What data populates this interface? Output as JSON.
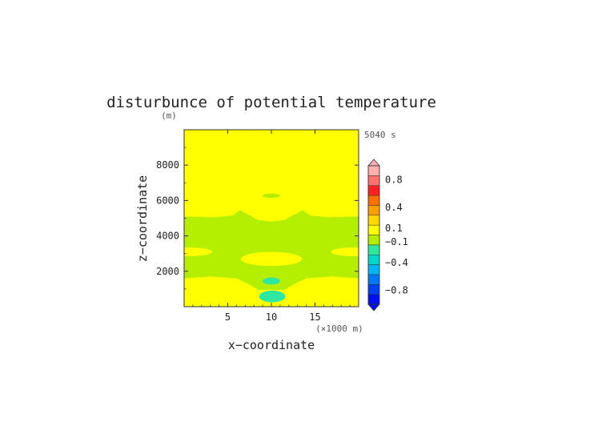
{
  "chart_data": {
    "type": "heatmap",
    "title": "disturbunce of potential temperature",
    "time_label": "5040 s",
    "xlabel": "x−coordinate",
    "ylabel": "z−coordinate",
    "x_unit": "(×1000 m)",
    "y_unit": "(m)",
    "xlim": [
      0,
      20
    ],
    "ylim": [
      0,
      10000
    ],
    "x_ticks": [
      5,
      10,
      15
    ],
    "x_tick_labels": [
      "5",
      "10",
      "15"
    ],
    "y_ticks": [
      2000,
      4000,
      6000,
      8000
    ],
    "y_tick_labels": [
      "2000",
      "4000",
      "6000",
      "8000"
    ],
    "background_level": "-0.1 to 0.1",
    "regions": [
      {
        "level": "-0.3 to -0.1",
        "color": "#b4ee00",
        "shape": "band",
        "z_range": [
          1600,
          5100
        ],
        "note": "central band with bulges near x=7 and x=13"
      },
      {
        "level": "-0.1 to 0.1",
        "color": "#ffff00",
        "shape": "lens",
        "x_range": [
          7,
          13
        ],
        "z_center": 2700
      },
      {
        "level": "-0.1 to 0.1",
        "color": "#ffff00",
        "shape": "lens",
        "x_range": [
          0,
          3.2
        ],
        "z_center": 3100
      },
      {
        "level": "-0.1 to 0.1",
        "color": "#ffff00",
        "shape": "lens",
        "x_range": [
          16.8,
          20
        ],
        "z_center": 3100
      },
      {
        "level": "-0.5 to -0.3",
        "color": "#2ee8a0",
        "shape": "blob",
        "x_range": [
          9,
          11
        ],
        "z_range": [
          1300,
          1600
        ]
      },
      {
        "level": "-0.5 to -0.3",
        "color": "#2ee8a0",
        "shape": "blob",
        "x_range": [
          8.8,
          11.6
        ],
        "z_range": [
          250,
          900
        ]
      },
      {
        "level": "-0.3 to -0.1",
        "color": "#b4ee00",
        "shape": "blob",
        "x_range": [
          9,
          11
        ],
        "z_range": [
          6150,
          6400
        ]
      }
    ],
    "colorbar": {
      "colors": [
        "#0010f0",
        "#0040f8",
        "#0078f8",
        "#00b4f8",
        "#00d8c8",
        "#2ee8a0",
        "#b4ee00",
        "#ffff00",
        "#ffd800",
        "#ffa000",
        "#ff7000",
        "#ff2020",
        "#ff7070",
        "#ffb0b0"
      ],
      "tick_labels": [
        "0.8",
        "0.4",
        "0.1",
        "−0.1",
        "−0.4",
        "−0.8"
      ],
      "tick_values": [
        0.8,
        0.4,
        0.1,
        -0.1,
        -0.4,
        -0.8
      ],
      "range": [
        -1.0,
        1.0
      ]
    }
  }
}
